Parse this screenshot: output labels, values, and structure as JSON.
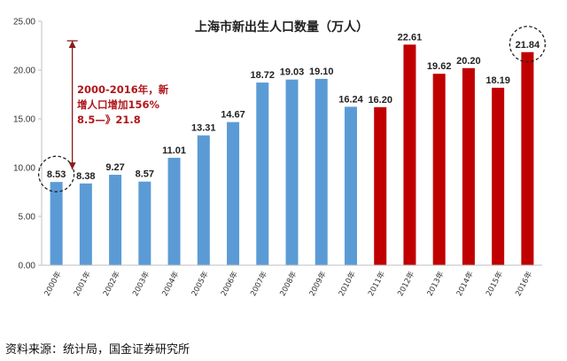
{
  "chart_data": {
    "type": "bar",
    "title": "上海市新出生人口数量（万人）",
    "categories": [
      "2000年",
      "2001年",
      "2002年",
      "2003年",
      "2004年",
      "2005年",
      "2006年",
      "2007年",
      "2008年",
      "2009年",
      "2010年",
      "2011年",
      "2012年",
      "2013年",
      "2014年",
      "2015年",
      "2016年"
    ],
    "values": [
      8.53,
      8.38,
      9.27,
      8.57,
      11.01,
      13.31,
      14.67,
      18.72,
      19.03,
      19.1,
      16.24,
      16.2,
      22.61,
      19.62,
      20.2,
      18.19,
      21.84
    ],
    "value_labels": [
      "8.53",
      "8.38",
      "9.27",
      "8.57",
      "11.01",
      "13.31",
      "14.67",
      "18.72",
      "19.03",
      "19.10",
      "16.24",
      "16.20",
      "22.61",
      "19.62",
      "20.20",
      "18.19",
      "21.84"
    ],
    "bar_colors": [
      "#5b9bd5",
      "#5b9bd5",
      "#5b9bd5",
      "#5b9bd5",
      "#5b9bd5",
      "#5b9bd5",
      "#5b9bd5",
      "#5b9bd5",
      "#5b9bd5",
      "#5b9bd5",
      "#5b9bd5",
      "#c00000",
      "#c00000",
      "#c00000",
      "#c00000",
      "#c00000",
      "#c00000"
    ],
    "highlighted": [
      "2000年",
      "2016年"
    ],
    "ylim": [
      0,
      25
    ],
    "yticks": [
      "0.00",
      "5.00",
      "10.00",
      "15.00",
      "20.00",
      "25.00"
    ],
    "xlabel": "",
    "ylabel": "",
    "grid": false,
    "annotation": {
      "lines": [
        "2000-2016年，新",
        "增人口增加156%",
        "8.5—》21.8"
      ],
      "from_value": 8.53,
      "to_value": 23
    }
  },
  "source": "资料来源：统计局，国金证券研究所"
}
